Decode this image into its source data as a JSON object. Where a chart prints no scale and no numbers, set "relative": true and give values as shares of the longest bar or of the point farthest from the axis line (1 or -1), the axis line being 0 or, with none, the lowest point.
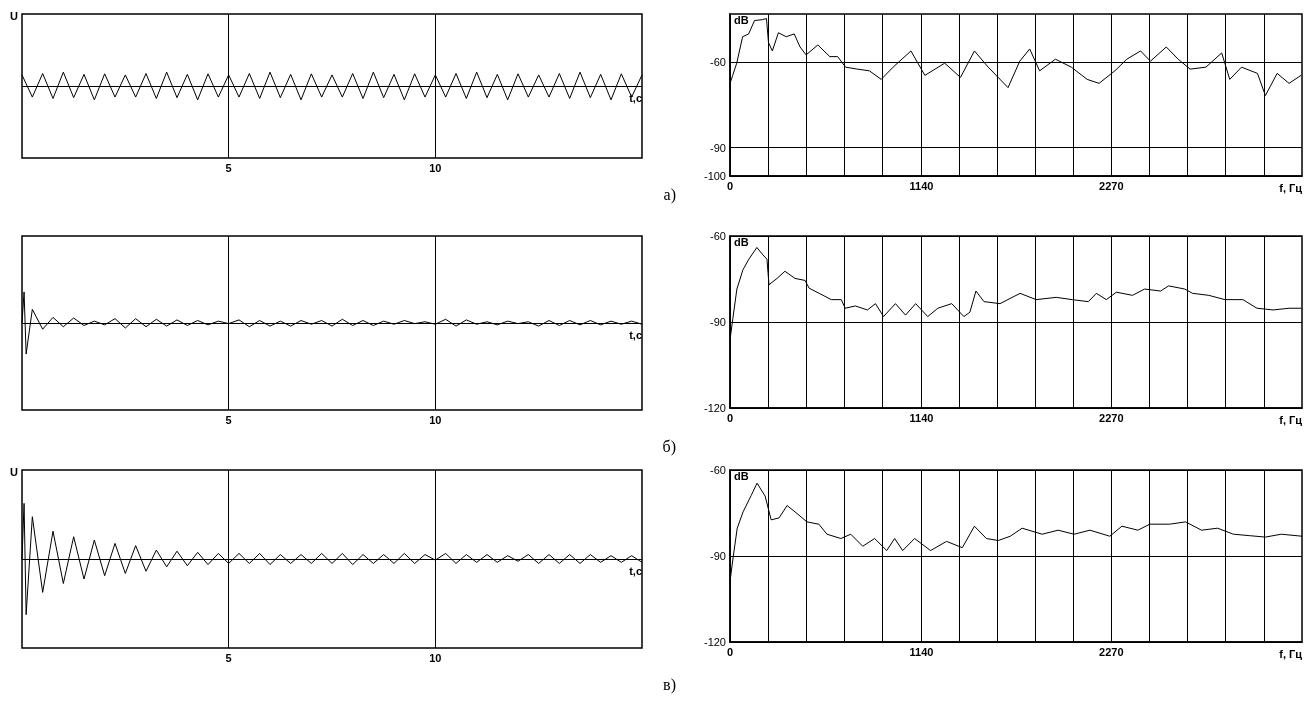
{
  "chart_data": [
    {
      "type": "line",
      "relative": true,
      "ylabel": "U",
      "xlabel": "t,c",
      "xlim": [
        0,
        15
      ],
      "xticks": [
        5,
        10
      ],
      "grid": "x",
      "marker": "none",
      "color": "#000000",
      "annotations": [
        "а)"
      ],
      "x": [
        0,
        0.25,
        0.5,
        0.75,
        1,
        1.25,
        1.5,
        1.75,
        2,
        2.25,
        2.5,
        2.75,
        3,
        3.25,
        3.5,
        3.75,
        4,
        4.25,
        4.5,
        4.75,
        5,
        5.25,
        5.5,
        5.75,
        6,
        6.25,
        6.5,
        6.75,
        7,
        7.25,
        7.5,
        7.75,
        8,
        8.25,
        8.5,
        8.75,
        9,
        9.25,
        9.5,
        9.75,
        10,
        10.25,
        10.5,
        10.75,
        11,
        11.25,
        11.5,
        11.75,
        12,
        12.25,
        12.5,
        12.75,
        13,
        13.25,
        13.5,
        13.75,
        14,
        14.25,
        14.5,
        14.75,
        15
      ],
      "values": [
        0.8,
        -0.8,
        0.9,
        -0.9,
        1,
        -0.84,
        0.84,
        -1,
        0.88,
        -0.8,
        0.8,
        -0.8,
        0.9,
        -0.9,
        1,
        -0.84,
        0.84,
        -1,
        0.88,
        -0.8,
        0.8,
        -0.8,
        0.9,
        -0.9,
        1,
        -0.84,
        0.84,
        -1,
        0.88,
        -0.8,
        0.8,
        -0.8,
        0.9,
        -0.9,
        1,
        -0.84,
        0.84,
        -1,
        0.88,
        -0.8,
        0.8,
        -0.8,
        0.9,
        -0.9,
        1,
        -0.84,
        0.84,
        -1,
        0.88,
        -0.8,
        0.8,
        -0.8,
        0.9,
        -0.9,
        1,
        -0.84,
        0.84,
        -1,
        0.88,
        -0.8,
        0.8
      ]
    },
    {
      "type": "line",
      "ylabel": "dB",
      "xlabel": "f, Гц",
      "xlim": [
        0,
        3405
      ],
      "ylim": [
        -100,
        -43
      ],
      "yticks": [
        -60,
        -90,
        -100
      ],
      "grid": true,
      "marker": "none",
      "color": "#000000",
      "xticks": [
        0,
        {
          "value": 227,
          "label": null
        },
        {
          "value": 454,
          "label": null
        },
        {
          "value": 681,
          "label": null
        },
        {
          "value": 908,
          "label": null
        },
        1140,
        {
          "value": 1362,
          "label": null
        },
        {
          "value": 1589,
          "label": null
        },
        {
          "value": 1816,
          "label": null
        },
        {
          "value": 2043,
          "label": null
        },
        2270,
        {
          "value": 2497,
          "label": null
        },
        {
          "value": 2724,
          "label": null
        },
        {
          "value": 2951,
          "label": null
        },
        {
          "value": 3178,
          "label": null
        }
      ],
      "x": [
        0,
        16,
        40,
        75,
        111,
        146,
        193,
        217,
        229,
        252,
        288,
        335,
        382,
        417,
        453,
        523,
        594,
        641,
        688,
        759,
        830,
        900,
        971,
        1077,
        1160,
        1278,
        1372,
        1455,
        1537,
        1655,
        1725,
        1784,
        1843,
        1937,
        2032,
        2126,
        2197,
        2291,
        2362,
        2444,
        2503,
        2597,
        2668,
        2739,
        2833,
        2927,
        2975,
        3045,
        3140,
        3187,
        3257,
        3328,
        3399
      ],
      "values": [
        -67.4,
        -64.6,
        -60.3,
        -51,
        -50,
        -45.3,
        -45,
        -44.6,
        -53,
        -56,
        -49.6,
        -51,
        -50,
        -54.6,
        -57.4,
        -53.9,
        -58,
        -58,
        -61.7,
        -62.4,
        -63,
        -66,
        -61.7,
        -56,
        -64.6,
        -60.3,
        -65.3,
        -56,
        -61.7,
        -68.9,
        -59.6,
        -55.3,
        -63,
        -58.9,
        -61.7,
        -66,
        -67.4,
        -63,
        -58.9,
        -56,
        -59.6,
        -54.6,
        -58.9,
        -62.4,
        -61.7,
        -56.7,
        -66,
        -61.7,
        -63.9,
        -71.7,
        -63.9,
        -67.4,
        -64.6
      ]
    },
    {
      "type": "line",
      "relative": true,
      "xlabel": "t,c",
      "xlim": [
        0,
        15
      ],
      "xticks": [
        5,
        10
      ],
      "grid": "x",
      "marker": "none",
      "color": "#000000",
      "annotations": [
        "б)"
      ],
      "x": [
        0,
        0.05,
        0.1,
        0.25,
        0.5,
        0.75,
        1,
        1.25,
        1.5,
        1.75,
        2,
        2.25,
        2.5,
        2.75,
        3,
        3.25,
        3.5,
        3.75,
        4,
        4.25,
        4.5,
        4.75,
        5,
        5.25,
        5.5,
        5.75,
        6,
        6.25,
        6.5,
        6.75,
        7,
        7.25,
        7.5,
        7.75,
        8,
        8.25,
        8.5,
        8.75,
        9,
        9.25,
        9.5,
        9.75,
        10,
        10.25,
        10.5,
        10.75,
        11,
        11.25,
        11.5,
        11.75,
        12,
        12.25,
        12.5,
        12.75,
        13,
        13.25,
        13.5,
        13.75,
        14,
        14.25,
        14.5,
        14.75,
        15
      ],
      "values": [
        0,
        1,
        -1,
        0.44,
        -0.2,
        0.18,
        -0.12,
        0.16,
        -0.08,
        0.06,
        -0.06,
        0.14,
        -0.16,
        0.14,
        -0.12,
        0.12,
        -0.1,
        0.1,
        -0.08,
        0.08,
        -0.06,
        0.06,
        -0.02,
        0.1,
        -0.12,
        0.08,
        -0.1,
        0.06,
        -0.1,
        0.08,
        -0.04,
        0.08,
        -0.1,
        0.12,
        -0.08,
        0.08,
        -0.08,
        0.06,
        -0.04,
        0.08,
        -0.02,
        0.04,
        -0.04,
        0.12,
        -0.1,
        0.1,
        -0.04,
        0.04,
        -0.06,
        0.06,
        -0.02,
        0.04,
        -0.1,
        0.08,
        -0.08,
        0.08,
        -0.06,
        0.08,
        -0.06,
        0.06,
        -0.04,
        0.06,
        -0.04
      ]
    },
    {
      "type": "line",
      "ylabel": "dB",
      "xlabel": "f, Гц",
      "xlim": [
        0,
        3405
      ],
      "ylim": [
        -120,
        -60
      ],
      "yticks": [
        -60,
        -90,
        -120
      ],
      "grid": true,
      "marker": "none",
      "color": "#000000",
      "xticks": [
        0,
        {
          "value": 227,
          "label": null
        },
        {
          "value": 454,
          "label": null
        },
        {
          "value": 681,
          "label": null
        },
        {
          "value": 908,
          "label": null
        },
        1140,
        {
          "value": 1362,
          "label": null
        },
        {
          "value": 1589,
          "label": null
        },
        {
          "value": 1816,
          "label": null
        },
        {
          "value": 2043,
          "label": null
        },
        2270,
        {
          "value": 2497,
          "label": null
        },
        {
          "value": 2724,
          "label": null
        },
        {
          "value": 2951,
          "label": null
        },
        {
          "value": 3178,
          "label": null
        }
      ],
      "x": [
        0,
        17,
        41,
        77,
        112,
        160,
        196,
        220,
        232,
        280,
        327,
        387,
        447,
        471,
        531,
        603,
        662,
        686,
        746,
        818,
        866,
        914,
        985,
        1045,
        1105,
        1177,
        1237,
        1320,
        1392,
        1428,
        1464,
        1512,
        1607,
        1727,
        1822,
        1942,
        2037,
        2133,
        2181,
        2240,
        2300,
        2396,
        2468,
        2563,
        2611,
        2707,
        2754,
        2850,
        2946,
        3053,
        3137,
        3233,
        3328,
        3400
      ],
      "values": [
        -96.2,
        -88.8,
        -78.5,
        -71.8,
        -68.1,
        -64,
        -66.6,
        -68.1,
        -77,
        -74.8,
        -72.3,
        -74.8,
        -75.5,
        -78.2,
        -80,
        -82.2,
        -82.2,
        -85.2,
        -84.4,
        -85.8,
        -83.6,
        -88.1,
        -83.6,
        -87.6,
        -83.6,
        -88.1,
        -85.2,
        -83.6,
        -88.1,
        -86.6,
        -79.2,
        -82.9,
        -83.6,
        -80,
        -82.2,
        -81.4,
        -82.2,
        -82.9,
        -80,
        -82.2,
        -79.6,
        -80.7,
        -78.5,
        -79.2,
        -77.4,
        -78.5,
        -80,
        -80.7,
        -82.2,
        -82.2,
        -85.2,
        -85.8,
        -85.2,
        -85.2
      ]
    },
    {
      "type": "line",
      "relative": true,
      "ylabel": "U",
      "xlabel": "t,c",
      "xlim": [
        0,
        15
      ],
      "xticks": [
        5,
        10
      ],
      "grid": "x",
      "marker": "none",
      "color": "#000000",
      "annotations": [
        "в)"
      ],
      "x": [
        0,
        0.05,
        0.1,
        0.25,
        0.5,
        0.75,
        1,
        1.25,
        1.5,
        1.75,
        2,
        2.25,
        2.5,
        2.75,
        3,
        3.25,
        3.5,
        3.75,
        4,
        4.25,
        4.5,
        4.75,
        5,
        5.25,
        5.5,
        5.75,
        6,
        6.25,
        6.5,
        6.75,
        7,
        7.25,
        7.5,
        7.75,
        8,
        8.25,
        8.5,
        8.75,
        9,
        9.25,
        9.5,
        9.75,
        10,
        10.25,
        10.5,
        10.75,
        11,
        11.25,
        11.5,
        11.75,
        12,
        12.25,
        12.5,
        12.75,
        13,
        13.25,
        13.5,
        13.75,
        14,
        14.25,
        14.5,
        14.75,
        15
      ],
      "values": [
        0,
        1,
        -1,
        0.76,
        -0.6,
        0.5,
        -0.44,
        0.4,
        -0.36,
        0.34,
        -0.3,
        0.28,
        -0.26,
        0.24,
        -0.22,
        0.16,
        -0.14,
        0.14,
        -0.12,
        0.12,
        -0.1,
        0.1,
        -0.08,
        0.1,
        -0.08,
        0.1,
        -0.1,
        0.08,
        -0.08,
        0.08,
        -0.08,
        0.1,
        -0.08,
        0.1,
        -0.1,
        0.08,
        -0.08,
        0.08,
        -0.08,
        0.1,
        -0.08,
        0.08,
        -0.02,
        0.1,
        -0.08,
        0.08,
        -0.06,
        0.08,
        -0.06,
        0.06,
        -0.04,
        0.08,
        -0.08,
        0.08,
        -0.08,
        0.08,
        -0.08,
        0.08,
        -0.06,
        0.06,
        -0.06,
        0.06,
        -0.06
      ]
    },
    {
      "type": "line",
      "ylabel": "dB",
      "xlabel": "f, Гц",
      "xlim": [
        0,
        3405
      ],
      "ylim": [
        -120,
        -60
      ],
      "yticks": [
        -60,
        -90,
        -120
      ],
      "grid": true,
      "marker": "none",
      "color": "#000000",
      "xticks": [
        0,
        {
          "value": 227,
          "label": null
        },
        {
          "value": 454,
          "label": null
        },
        {
          "value": 681,
          "label": null
        },
        {
          "value": 908,
          "label": null
        },
        1140,
        {
          "value": 1362,
          "label": null
        },
        {
          "value": 1589,
          "label": null
        },
        {
          "value": 1816,
          "label": null
        },
        {
          "value": 2043,
          "label": null
        },
        2270,
        {
          "value": 2497,
          "label": null
        },
        {
          "value": 2724,
          "label": null
        },
        {
          "value": 2951,
          "label": null
        },
        {
          "value": 3178,
          "label": null
        }
      ],
      "x": [
        0,
        19,
        43,
        78,
        126,
        161,
        209,
        245,
        292,
        340,
        387,
        458,
        529,
        577,
        660,
        719,
        790,
        861,
        933,
        980,
        1028,
        1099,
        1194,
        1289,
        1383,
        1455,
        1526,
        1597,
        1668,
        1739,
        1858,
        1953,
        2048,
        2143,
        2261,
        2333,
        2428,
        2499,
        2617,
        2712,
        2807,
        2902,
        2997,
        3092,
        3187,
        3282,
        3405
      ],
      "values": [
        -98.9,
        -90.3,
        -80.3,
        -74.6,
        -68.9,
        -64.6,
        -69.1,
        -77.4,
        -76.7,
        -72.4,
        -74.6,
        -78.1,
        -78.9,
        -82.4,
        -83.9,
        -82.4,
        -86.6,
        -83.9,
        -88.1,
        -83.9,
        -88.1,
        -83.9,
        -88.1,
        -84.9,
        -87.1,
        -79.6,
        -83.9,
        -84.6,
        -83.1,
        -80.3,
        -82.4,
        -81,
        -82.4,
        -81,
        -83.1,
        -79.6,
        -81,
        -78.9,
        -78.9,
        -78.1,
        -81,
        -80.3,
        -82.4,
        -82.9,
        -83.4,
        -82.4,
        -83.1
      ]
    }
  ]
}
